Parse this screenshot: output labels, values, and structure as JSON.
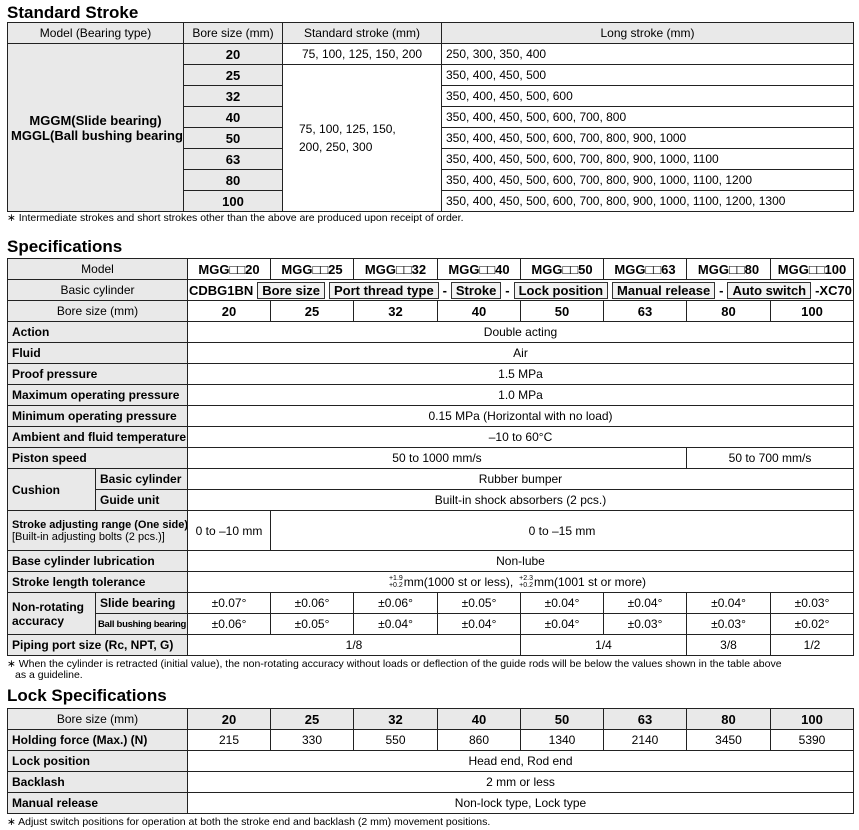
{
  "stroke": {
    "title": "Standard Stroke",
    "headers": [
      "Model (Bearing type)",
      "Bore size (mm)",
      "Standard stroke (mm)",
      "Long stroke (mm)"
    ],
    "model": [
      "MGGM(Slide bearing)",
      "MGGL(Ball bushing bearing)"
    ],
    "bores": [
      "20",
      "25",
      "32",
      "40",
      "50",
      "63",
      "80",
      "100"
    ],
    "standard": [
      "75, 100, 125, 150, 200",
      "75, 100, 125, 150,",
      "200, 250, 300"
    ],
    "long": [
      "250, 300, 350, 400",
      "350, 400, 450, 500",
      "350, 400, 450, 500, 600",
      "350, 400, 450, 500, 600, 700, 800",
      "350, 400, 450, 500, 600, 700, 800, 900, 1000",
      "350, 400, 450, 500, 600, 700, 800, 900, 1000, 1100",
      "350, 400, 450, 500, 600, 700, 800, 900, 1000, 1100, 1200",
      "350, 400, 450, 500, 600, 700, 800, 900, 1000, 1100, 1200, 1300"
    ],
    "note": "∗ Intermediate strokes and short strokes other than the above are produced upon receipt of order."
  },
  "specs": {
    "title": "Specifications",
    "model_label": "Model",
    "models": [
      "MGG□□20",
      "MGG□□25",
      "MGG□□32",
      "MGG□□40",
      "MGG□□50",
      "MGG□□63",
      "MGG□□80",
      "MGG□□100"
    ],
    "basic_label": "Basic cylinder",
    "basic": [
      {
        "t": "CDBG1BN",
        "box": false
      },
      {
        "t": "Bore size",
        "box": true
      },
      {
        "t": "Port thread type",
        "box": true
      },
      {
        "t": "-",
        "box": false
      },
      {
        "t": "Stroke",
        "box": true
      },
      {
        "t": "-",
        "box": false
      },
      {
        "t": "Lock position",
        "box": true
      },
      {
        "t": "Manual release",
        "box": true
      },
      {
        "t": "-",
        "box": false
      },
      {
        "t": "Auto switch",
        "box": true
      },
      {
        "t": "-XC70",
        "box": false
      }
    ],
    "bore_label": "Bore size (mm)",
    "bores": [
      "20",
      "25",
      "32",
      "40",
      "50",
      "63",
      "80",
      "100"
    ],
    "rows": [
      {
        "label": "Action",
        "values": [
          {
            "v": "Double acting",
            "span": 8
          }
        ]
      },
      {
        "label": "Fluid",
        "values": [
          {
            "v": "Air",
            "span": 8
          }
        ]
      },
      {
        "label": "Proof pressure",
        "values": [
          {
            "v": "1.5 MPa",
            "span": 8
          }
        ]
      },
      {
        "label": "Maximum operating pressure",
        "values": [
          {
            "v": "1.0 MPa",
            "span": 8
          }
        ]
      },
      {
        "label": "Minimum operating pressure",
        "values": [
          {
            "v": "0.15 MPa (Horizontal with no load)",
            "span": 8
          }
        ]
      },
      {
        "label": "Ambient and fluid temperature",
        "values": [
          {
            "v": "–10 to 60°C",
            "span": 8
          }
        ]
      },
      {
        "label": "Piston speed",
        "values": [
          {
            "v": "50 to 1000 mm/s",
            "span": 6
          },
          {
            "v": "50 to 700 mm/s",
            "span": 2
          }
        ]
      }
    ],
    "cushion": {
      "label": "Cushion",
      "sub": [
        {
          "label": "Basic cylinder",
          "v": "Rubber bumper"
        },
        {
          "label": "Guide unit",
          "v": "Built-in shock absorbers (2 pcs.)"
        }
      ]
    },
    "stroke_adj": {
      "label": "Stroke adjusting range (One side)",
      "label2": "[Built-in adjusting bolts (2 pcs.)]",
      "values": [
        {
          "v": "0 to –10 mm",
          "span": 1
        },
        {
          "v": "0 to –15 mm",
          "span": 7
        }
      ]
    },
    "lubrication": {
      "label": "Base cylinder lubrication",
      "v": "Non-lube"
    },
    "tolerance": {
      "label": "Stroke length tolerance",
      "a_up": "+1.9",
      "a_lo": "+0.2",
      "a": "mm(1000 st or less),",
      "b_up": "+2.3",
      "b_lo": "+0.2",
      "b": "mm(1001 st or more)"
    },
    "nonrot": {
      "label1": "Non-rotating",
      "label2": "accuracy",
      "sub": [
        {
          "label": "Slide bearing",
          "values": [
            "±0.07°",
            "±0.06°",
            "±0.06°",
            "±0.05°",
            "±0.04°",
            "±0.04°",
            "±0.04°",
            "±0.03°"
          ]
        },
        {
          "label": "Ball bushing bearing",
          "values": [
            "±0.06°",
            "±0.05°",
            "±0.04°",
            "±0.04°",
            "±0.04°",
            "±0.03°",
            "±0.03°",
            "±0.02°"
          ]
        }
      ]
    },
    "piping": {
      "label": "Piping port size (Rc, NPT, G)",
      "values": [
        {
          "v": "1/8",
          "span": 4
        },
        {
          "v": "1/4",
          "span": 2
        },
        {
          "v": "3/8",
          "span": 1
        },
        {
          "v": "1/2",
          "span": 1
        }
      ]
    },
    "note1": "∗ When the cylinder is retracted (initial value), the non-rotating accuracy without loads or deflection of the guide rods will be below the values shown in the table above",
    "note2": "as a guideline."
  },
  "lock": {
    "title": "Lock Specifications",
    "bore_label": "Bore size (mm)",
    "bores": [
      "20",
      "25",
      "32",
      "40",
      "50",
      "63",
      "80",
      "100"
    ],
    "holding_label": "Holding force (Max.) (N)",
    "holding": [
      "215",
      "330",
      "550",
      "860",
      "1340",
      "2140",
      "3450",
      "5390"
    ],
    "rows": [
      {
        "label": "Lock position",
        "v": "Head end, Rod end"
      },
      {
        "label": "Backlash",
        "v": "2 mm or less"
      },
      {
        "label": "Manual release",
        "v": "Non-lock type, Lock type"
      }
    ],
    "note": "∗ Adjust switch positions for operation at both the stroke end and backlash (2 mm) movement positions."
  }
}
